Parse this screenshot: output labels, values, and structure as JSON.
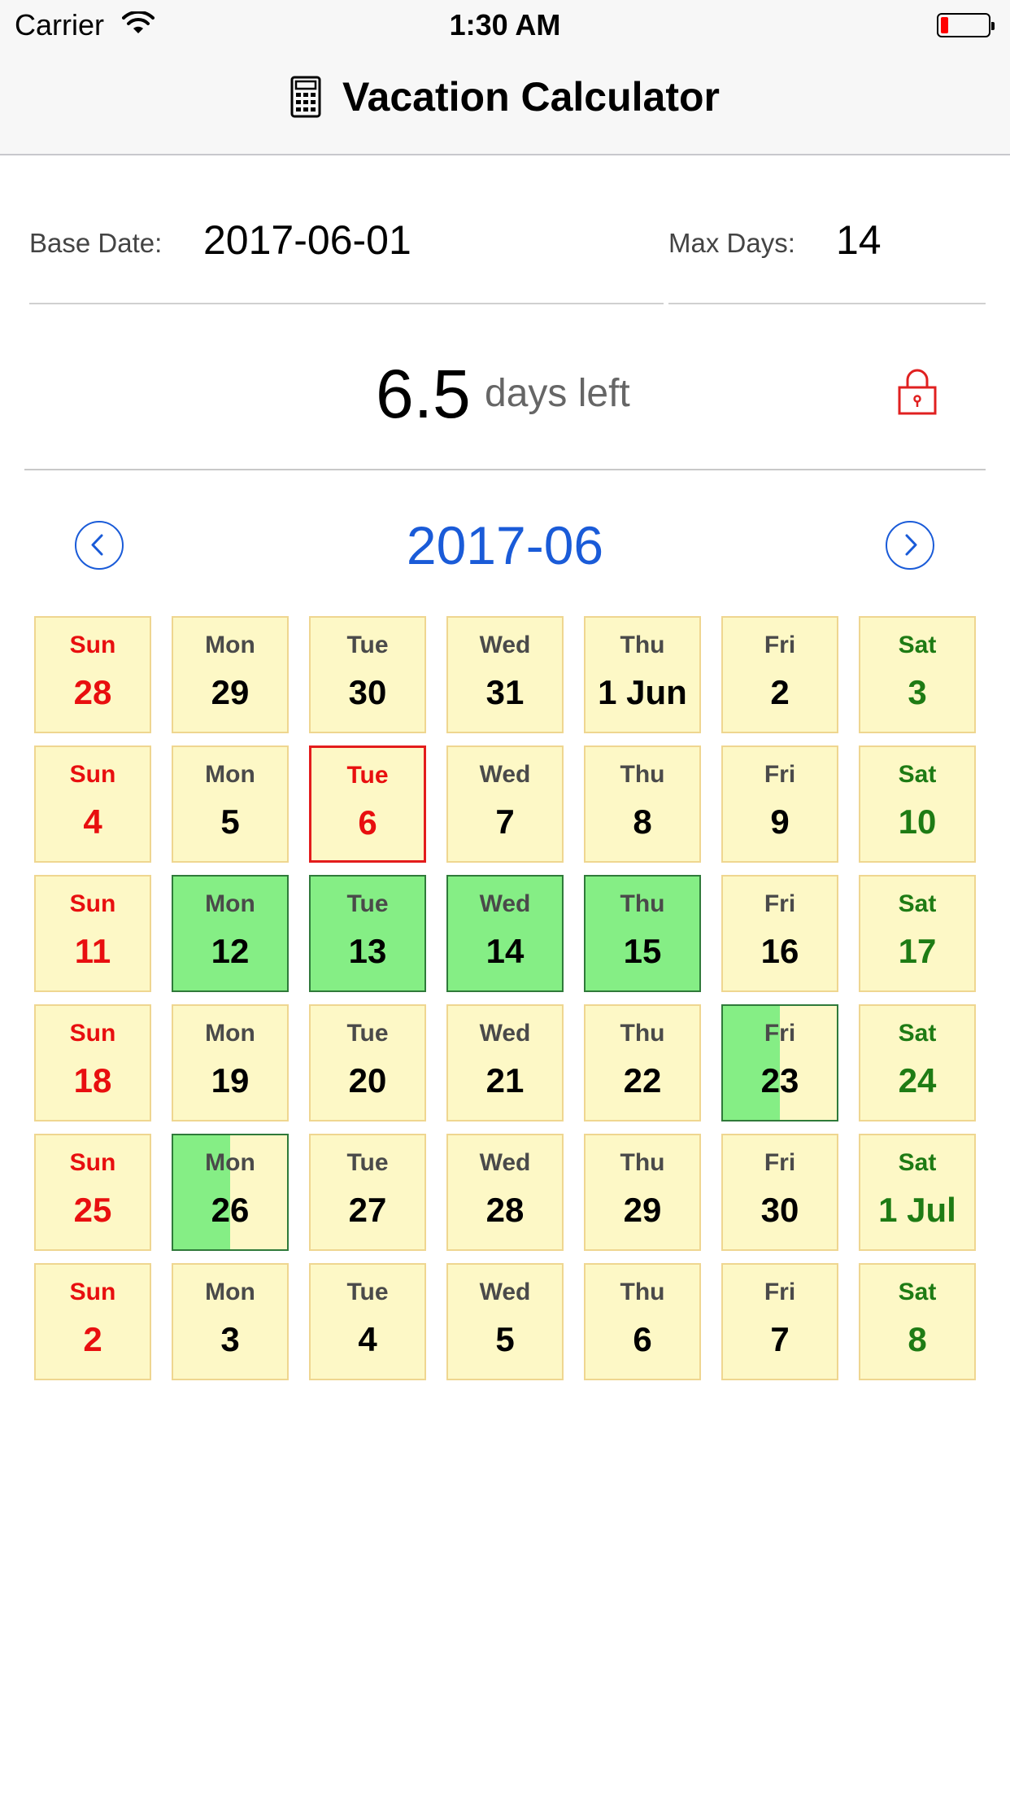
{
  "status_bar": {
    "carrier": "Carrier",
    "time": "1:30 AM",
    "battery_level_fraction": 0.15
  },
  "nav": {
    "title": "Vacation Calculator",
    "icon": "calculator-icon"
  },
  "fields": {
    "base_date_label": "Base Date:",
    "base_date_value": "2017-06-01",
    "max_days_label": "Max Days:",
    "max_days_value": "14"
  },
  "summary": {
    "days_left_value": "6.5",
    "days_left_text": "days left",
    "lock_icon": "lock-icon"
  },
  "calendar": {
    "month": "2017-06",
    "prev_icon": "chevron-left-icon",
    "next_icon": "chevron-right-icon",
    "colors": {
      "cell_bg": "#fdf8c6",
      "cell_border": "#efd690",
      "vacation_fill": "#85ee85",
      "sunday": "#e80f0f",
      "saturday": "#1e7b14",
      "today_border": "#e31c1c"
    },
    "weeks": [
      [
        {
          "dow": "Sun",
          "day": "28",
          "kind": "sun"
        },
        {
          "dow": "Mon",
          "day": "29"
        },
        {
          "dow": "Tue",
          "day": "30"
        },
        {
          "dow": "Wed",
          "day": "31"
        },
        {
          "dow": "Thu",
          "day": "1 Jun"
        },
        {
          "dow": "Fri",
          "day": "2"
        },
        {
          "dow": "Sat",
          "day": "3",
          "kind": "sat"
        }
      ],
      [
        {
          "dow": "Sun",
          "day": "4",
          "kind": "sun"
        },
        {
          "dow": "Mon",
          "day": "5"
        },
        {
          "dow": "Tue",
          "day": "6",
          "today": true
        },
        {
          "dow": "Wed",
          "day": "7"
        },
        {
          "dow": "Thu",
          "day": "8"
        },
        {
          "dow": "Fri",
          "day": "9"
        },
        {
          "dow": "Sat",
          "day": "10",
          "kind": "sat"
        }
      ],
      [
        {
          "dow": "Sun",
          "day": "11",
          "kind": "sun"
        },
        {
          "dow": "Mon",
          "day": "12",
          "vacation": 1
        },
        {
          "dow": "Tue",
          "day": "13",
          "vacation": 1
        },
        {
          "dow": "Wed",
          "day": "14",
          "vacation": 1
        },
        {
          "dow": "Thu",
          "day": "15",
          "vacation": 1
        },
        {
          "dow": "Fri",
          "day": "16"
        },
        {
          "dow": "Sat",
          "day": "17",
          "kind": "sat"
        }
      ],
      [
        {
          "dow": "Sun",
          "day": "18",
          "kind": "sun"
        },
        {
          "dow": "Mon",
          "day": "19"
        },
        {
          "dow": "Tue",
          "day": "20"
        },
        {
          "dow": "Wed",
          "day": "21"
        },
        {
          "dow": "Thu",
          "day": "22"
        },
        {
          "dow": "Fri",
          "day": "23",
          "vacation": 0.5
        },
        {
          "dow": "Sat",
          "day": "24",
          "kind": "sat"
        }
      ],
      [
        {
          "dow": "Sun",
          "day": "25",
          "kind": "sun"
        },
        {
          "dow": "Mon",
          "day": "26",
          "vacation": 0.5
        },
        {
          "dow": "Tue",
          "day": "27"
        },
        {
          "dow": "Wed",
          "day": "28"
        },
        {
          "dow": "Thu",
          "day": "29"
        },
        {
          "dow": "Fri",
          "day": "30"
        },
        {
          "dow": "Sat",
          "day": "1 Jul",
          "kind": "sat"
        }
      ],
      [
        {
          "dow": "Sun",
          "day": "2",
          "kind": "sun"
        },
        {
          "dow": "Mon",
          "day": "3"
        },
        {
          "dow": "Tue",
          "day": "4"
        },
        {
          "dow": "Wed",
          "day": "5"
        },
        {
          "dow": "Thu",
          "day": "6"
        },
        {
          "dow": "Fri",
          "day": "7"
        },
        {
          "dow": "Sat",
          "day": "8",
          "kind": "sat"
        }
      ]
    ]
  }
}
